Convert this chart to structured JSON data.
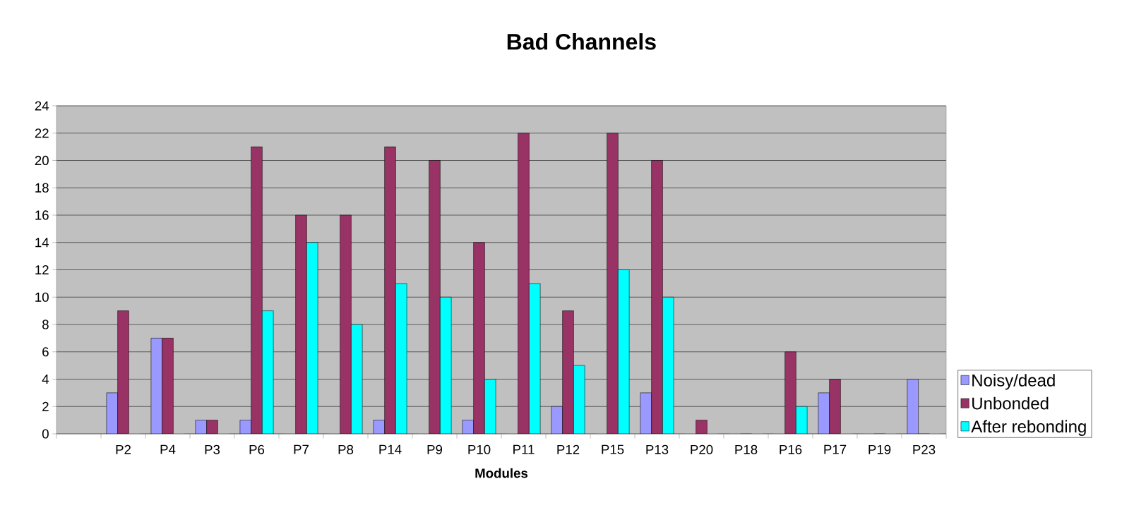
{
  "chart_data": {
    "type": "bar",
    "title": "Bad Channels",
    "xlabel": "Modules",
    "categories": [
      null,
      "P2",
      "P4",
      "P3",
      "P6",
      "P7",
      "P8",
      "P14",
      "P9",
      "P10",
      "P11",
      "P12",
      "P15",
      "P13",
      "P20",
      "P18",
      "P16",
      "P17",
      "P19",
      "P23"
    ],
    "series": [
      {
        "name": "Noisy/dead",
        "color": "#9999ff",
        "values": [
          null,
          3,
          7,
          1,
          1,
          0,
          0,
          1,
          0,
          1,
          0,
          2,
          0,
          3,
          0,
          0,
          0,
          3,
          0,
          4
        ]
      },
      {
        "name": "Unbonded",
        "color": "#993366",
        "values": [
          null,
          9,
          7,
          1,
          21,
          16,
          16,
          21,
          20,
          14,
          22,
          9,
          22,
          20,
          1,
          0,
          6,
          4,
          0,
          0
        ]
      },
      {
        "name": "After rebonding",
        "color": "#00ffff",
        "values": [
          null,
          0,
          0,
          0,
          9,
          14,
          8,
          11,
          10,
          4,
          11,
          5,
          12,
          10,
          0,
          0,
          2,
          0,
          0,
          0
        ]
      }
    ],
    "ylim": [
      0,
      24
    ],
    "yticks": [
      0,
      2,
      4,
      6,
      8,
      10,
      12,
      14,
      16,
      18,
      20,
      22,
      24
    ],
    "grid": "y",
    "legend": "right"
  }
}
